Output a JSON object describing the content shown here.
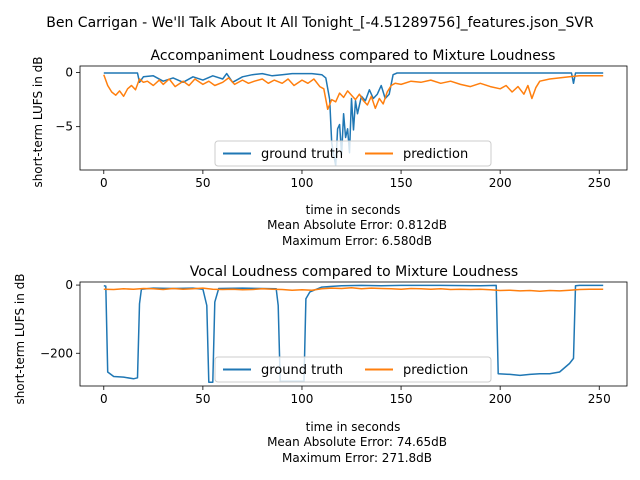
{
  "figure": {
    "suptitle": "Ben Carrigan - We'll Talk About It All Tonight_[-4.51289756]_features.json_SVR"
  },
  "chart_data": [
    {
      "type": "line",
      "title": "Accompaniment Loudness compared to Mixture Loudness",
      "xlabel": "time in seconds",
      "ylabel": "short-term LUFS in dB",
      "xlim": [
        -12,
        264
      ],
      "ylim": [
        -9,
        0.6
      ],
      "xticks": [
        0,
        50,
        100,
        150,
        200,
        250
      ],
      "yticks": [
        0,
        -5
      ],
      "notes": [
        "Mean Absolute Error: 0.812dB",
        "Maximum Error: 6.580dB"
      ],
      "legend": {
        "location": "lower center",
        "columns": 2
      },
      "series": [
        {
          "name": "ground truth",
          "color": "#1f77b4",
          "points": [
            [
              0,
              -0.05
            ],
            [
              5,
              -0.05
            ],
            [
              10,
              -0.05
            ],
            [
              15,
              -0.05
            ],
            [
              17,
              -0.05
            ],
            [
              18,
              -0.9
            ],
            [
              20,
              -0.4
            ],
            [
              25,
              -0.3
            ],
            [
              30,
              -0.8
            ],
            [
              35,
              -0.5
            ],
            [
              40,
              -0.9
            ],
            [
              45,
              -0.4
            ],
            [
              50,
              -0.7
            ],
            [
              55,
              -0.3
            ],
            [
              60,
              -0.6
            ],
            [
              62,
              -0.1
            ],
            [
              65,
              -0.9
            ],
            [
              70,
              -0.4
            ],
            [
              75,
              -0.2
            ],
            [
              80,
              -0.1
            ],
            [
              85,
              -0.3
            ],
            [
              90,
              -0.2
            ],
            [
              95,
              -0.1
            ],
            [
              100,
              -0.1
            ],
            [
              105,
              -0.1
            ],
            [
              110,
              -0.2
            ],
            [
              112,
              -0.5
            ],
            [
              114,
              -2.5
            ],
            [
              115,
              -6.5
            ],
            [
              116,
              -7.6
            ],
            [
              117,
              -8.6
            ],
            [
              118,
              -5.2
            ],
            [
              119,
              -4.8
            ],
            [
              120,
              -7.6
            ],
            [
              121,
              -3.8
            ],
            [
              122,
              -6.0
            ],
            [
              123,
              -5.2
            ],
            [
              124,
              -7.4
            ],
            [
              125,
              -2.4
            ],
            [
              126,
              -5.3
            ],
            [
              127,
              -2.6
            ],
            [
              128,
              -3.8
            ],
            [
              130,
              -2.2
            ],
            [
              132,
              -2.6
            ],
            [
              134,
              -1.6
            ],
            [
              136,
              -2.4
            ],
            [
              138,
              -2.0
            ],
            [
              140,
              -1.2
            ],
            [
              142,
              -2.4
            ],
            [
              144,
              -2.0
            ],
            [
              146,
              -0.2
            ],
            [
              148,
              -0.05
            ],
            [
              150,
              -0.05
            ],
            [
              170,
              -0.05
            ],
            [
              200,
              -0.05
            ],
            [
              220,
              -0.05
            ],
            [
              235,
              -0.05
            ],
            [
              236,
              -0.05
            ],
            [
              237,
              -1.0
            ],
            [
              238,
              -0.05
            ],
            [
              245,
              -0.05
            ],
            [
              252,
              -0.05
            ]
          ]
        },
        {
          "name": "prediction",
          "color": "#ff7f0e",
          "points": [
            [
              0,
              -0.2
            ],
            [
              2,
              -1.2
            ],
            [
              4,
              -1.8
            ],
            [
              6,
              -2.1
            ],
            [
              8,
              -1.7
            ],
            [
              10,
              -2.2
            ],
            [
              12,
              -1.5
            ],
            [
              14,
              -1.2
            ],
            [
              16,
              -1.6
            ],
            [
              18,
              -0.6
            ],
            [
              20,
              -0.9
            ],
            [
              22,
              -0.8
            ],
            [
              25,
              -1.2
            ],
            [
              28,
              -0.7
            ],
            [
              30,
              -1.1
            ],
            [
              33,
              -0.6
            ],
            [
              36,
              -1.3
            ],
            [
              40,
              -0.8
            ],
            [
              43,
              -1.2
            ],
            [
              46,
              -0.6
            ],
            [
              50,
              -1.1
            ],
            [
              53,
              -0.8
            ],
            [
              56,
              -1.2
            ],
            [
              60,
              -0.9
            ],
            [
              63,
              -0.5
            ],
            [
              66,
              -1.1
            ],
            [
              70,
              -0.7
            ],
            [
              73,
              -1.0
            ],
            [
              76,
              -0.8
            ],
            [
              80,
              -0.6
            ],
            [
              83,
              -1.0
            ],
            [
              86,
              -0.7
            ],
            [
              90,
              -1.0
            ],
            [
              93,
              -0.6
            ],
            [
              96,
              -1.2
            ],
            [
              100,
              -0.7
            ],
            [
              103,
              -1.0
            ],
            [
              106,
              -0.6
            ],
            [
              109,
              -1.3
            ],
            [
              111,
              -1.5
            ],
            [
              113,
              -3.4
            ],
            [
              115,
              -2.5
            ],
            [
              117,
              -2.7
            ],
            [
              119,
              -1.9
            ],
            [
              121,
              -2.3
            ],
            [
              123,
              -1.7
            ],
            [
              125,
              -2.1
            ],
            [
              127,
              -2.5
            ],
            [
              129,
              -2.0
            ],
            [
              131,
              -2.6
            ],
            [
              133,
              -3.0
            ],
            [
              135,
              -2.2
            ],
            [
              137,
              -3.3
            ],
            [
              139,
              -2.4
            ],
            [
              141,
              -2.9
            ],
            [
              143,
              -1.8
            ],
            [
              145,
              -1.2
            ],
            [
              147,
              -1.0
            ],
            [
              150,
              -1.1
            ],
            [
              155,
              -0.8
            ],
            [
              160,
              -0.9
            ],
            [
              165,
              -0.7
            ],
            [
              170,
              -1.0
            ],
            [
              175,
              -0.8
            ],
            [
              180,
              -1.1
            ],
            [
              185,
              -1.3
            ],
            [
              190,
              -1.0
            ],
            [
              195,
              -1.3
            ],
            [
              200,
              -1.5
            ],
            [
              203,
              -1.2
            ],
            [
              206,
              -1.8
            ],
            [
              209,
              -1.3
            ],
            [
              212,
              -2.0
            ],
            [
              214,
              -1.2
            ],
            [
              216,
              -2.4
            ],
            [
              218,
              -1.4
            ],
            [
              220,
              -0.8
            ],
            [
              225,
              -0.6
            ],
            [
              230,
              -0.5
            ],
            [
              235,
              -0.4
            ],
            [
              240,
              -0.3
            ],
            [
              245,
              -0.3
            ],
            [
              252,
              -0.3
            ]
          ]
        }
      ]
    },
    {
      "type": "line",
      "title": "Vocal Loudness compared to Mixture Loudness",
      "xlabel": "time in seconds",
      "ylabel": "short-term LUFS in dB",
      "xlim": [
        -12,
        264
      ],
      "ylim": [
        -296,
        9
      ],
      "xticks": [
        0,
        50,
        100,
        150,
        200,
        250
      ],
      "yticks": [
        0,
        -200
      ],
      "notes": [
        "Mean Absolute Error: 74.65dB",
        "Maximum Error: 271.8dB"
      ],
      "legend": {
        "location": "lower center",
        "columns": 2
      },
      "series": [
        {
          "name": "ground truth",
          "color": "#1f77b4",
          "points": [
            [
              0,
              -2
            ],
            [
              1,
              -3
            ],
            [
              2,
              -255
            ],
            [
              5,
              -268
            ],
            [
              10,
              -270
            ],
            [
              15,
              -275
            ],
            [
              17,
              -272
            ],
            [
              18,
              -55
            ],
            [
              19,
              -12
            ],
            [
              25,
              -9
            ],
            [
              35,
              -10
            ],
            [
              45,
              -9
            ],
            [
              50,
              -12
            ],
            [
              52,
              -60
            ],
            [
              53,
              -285
            ],
            [
              55,
              -285
            ],
            [
              56,
              -50
            ],
            [
              58,
              -10
            ],
            [
              70,
              -9
            ],
            [
              80,
              -10
            ],
            [
              87,
              -11
            ],
            [
              88,
              -60
            ],
            [
              89,
              -282
            ],
            [
              95,
              -282
            ],
            [
              101,
              -282
            ],
            [
              102,
              -40
            ],
            [
              104,
              -20
            ],
            [
              110,
              -6
            ],
            [
              115,
              -4
            ],
            [
              120,
              -2
            ],
            [
              130,
              -1
            ],
            [
              140,
              -2
            ],
            [
              150,
              -1
            ],
            [
              170,
              -1
            ],
            [
              190,
              -2
            ],
            [
              198,
              -1
            ],
            [
              199,
              -260
            ],
            [
              205,
              -262
            ],
            [
              210,
              -265
            ],
            [
              215,
              -262
            ],
            [
              220,
              -260
            ],
            [
              225,
              -260
            ],
            [
              230,
              -255
            ],
            [
              235,
              -230
            ],
            [
              237,
              -215
            ],
            [
              238,
              -2
            ],
            [
              240,
              -1
            ],
            [
              252,
              -1
            ]
          ]
        },
        {
          "name": "prediction",
          "color": "#ff7f0e",
          "points": [
            [
              0,
              -12
            ],
            [
              5,
              -13
            ],
            [
              10,
              -11
            ],
            [
              15,
              -12
            ],
            [
              20,
              -10
            ],
            [
              25,
              -11
            ],
            [
              30,
              -13
            ],
            [
              35,
              -10
            ],
            [
              40,
              -12
            ],
            [
              45,
              -11
            ],
            [
              50,
              -9
            ],
            [
              55,
              -12
            ],
            [
              60,
              -13
            ],
            [
              65,
              -12
            ],
            [
              70,
              -14
            ],
            [
              75,
              -13
            ],
            [
              80,
              -11
            ],
            [
              85,
              -12
            ],
            [
              90,
              -13
            ],
            [
              95,
              -15
            ],
            [
              100,
              -14
            ],
            [
              105,
              -15
            ],
            [
              110,
              -11
            ],
            [
              115,
              -9
            ],
            [
              120,
              -10
            ],
            [
              125,
              -8
            ],
            [
              130,
              -11
            ],
            [
              135,
              -9
            ],
            [
              140,
              -10
            ],
            [
              145,
              -11
            ],
            [
              150,
              -12
            ],
            [
              155,
              -10
            ],
            [
              160,
              -11
            ],
            [
              165,
              -12
            ],
            [
              170,
              -11
            ],
            [
              175,
              -13
            ],
            [
              180,
              -12
            ],
            [
              185,
              -13
            ],
            [
              190,
              -12
            ],
            [
              195,
              -14
            ],
            [
              200,
              -16
            ],
            [
              205,
              -15
            ],
            [
              210,
              -17
            ],
            [
              215,
              -16
            ],
            [
              220,
              -18
            ],
            [
              225,
              -16
            ],
            [
              230,
              -17
            ],
            [
              235,
              -15
            ],
            [
              240,
              -13
            ],
            [
              245,
              -12
            ],
            [
              252,
              -12
            ]
          ]
        }
      ]
    }
  ]
}
